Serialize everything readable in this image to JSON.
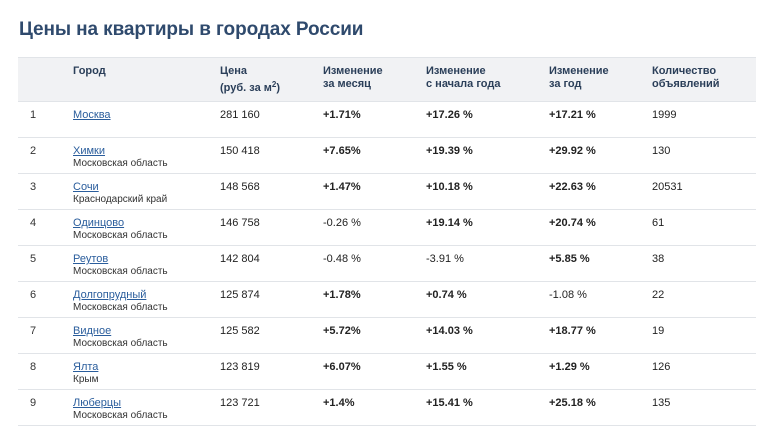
{
  "title": "Цены на квартиры в городах России",
  "columns": {
    "num": "",
    "city": "Город",
    "price_line1": "Цена",
    "price_line2_pre": "(руб. за м",
    "price_line2_sup": "2",
    "price_line2_post": ")",
    "month_line1": "Изменение",
    "month_line2": "за месяц",
    "ytd_line1": "Изменение",
    "ytd_line2": "с начала года",
    "year_line1": "Изменение",
    "year_line2": "за год",
    "count_line1": "Количество",
    "count_line2": "объявлений"
  },
  "rows": [
    {
      "num": "1",
      "city": "Москва",
      "region": "",
      "price": "281 160",
      "month": "+1.71%",
      "ytd": "+17.26 %",
      "year": "+17.21 %",
      "count": "1999"
    },
    {
      "num": "2",
      "city": "Химки",
      "region": "Московская область",
      "price": "150 418",
      "month": "+7.65%",
      "ytd": "+19.39 %",
      "year": "+29.92 %",
      "count": "130"
    },
    {
      "num": "3",
      "city": "Сочи",
      "region": "Краснодарский край",
      "price": "148 568",
      "month": "+1.47%",
      "ytd": "+10.18 %",
      "year": "+22.63 %",
      "count": "20531"
    },
    {
      "num": "4",
      "city": "Одинцово",
      "region": "Московская область",
      "price": "146 758",
      "month": "-0.26 %",
      "ytd": "+19.14 %",
      "year": "+20.74 %",
      "count": "61"
    },
    {
      "num": "5",
      "city": "Реутов",
      "region": "Московская область",
      "price": "142 804",
      "month": "-0.48 %",
      "ytd": "-3.91 %",
      "year": "+5.85 %",
      "count": "38"
    },
    {
      "num": "6",
      "city": "Долгопрудный",
      "region": "Московская область",
      "price": "125 874",
      "month": "+1.78%",
      "ytd": "+0.74 %",
      "year": "-1.08 %",
      "count": "22"
    },
    {
      "num": "7",
      "city": "Видное",
      "region": "Московская область",
      "price": "125 582",
      "month": "+5.72%",
      "ytd": "+14.03 %",
      "year": "+18.77 %",
      "count": "19"
    },
    {
      "num": "8",
      "city": "Ялта",
      "region": "Крым",
      "price": "123 819",
      "month": "+6.07%",
      "ytd": "+1.55 %",
      "year": "+1.29 %",
      "count": "126"
    },
    {
      "num": "9",
      "city": "Люберцы",
      "region": "Московская область",
      "price": "123 721",
      "month": "+1.4%",
      "ytd": "+15.41 %",
      "year": "+25.18 %",
      "count": "135"
    }
  ]
}
